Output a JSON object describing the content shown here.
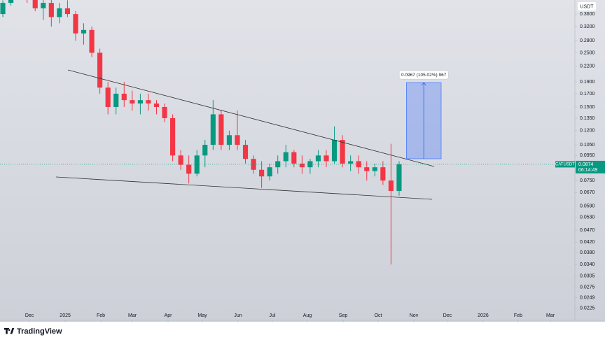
{
  "chart_data": {
    "type": "candlestick",
    "symbol": "CATUSDT",
    "currency": "USDT",
    "log_scale": true,
    "up_color": "#089981",
    "down_color": "#f23645",
    "x": [
      0,
      1,
      2,
      3,
      4,
      5,
      6,
      7,
      8,
      9,
      10,
      11,
      12,
      13,
      14,
      15,
      16,
      17,
      18,
      19,
      20,
      21,
      22,
      23,
      24,
      25,
      26,
      27,
      28,
      29,
      30,
      31,
      32,
      33,
      34,
      35,
      36,
      37,
      38,
      39,
      40,
      41,
      42,
      43,
      44,
      45,
      46,
      47,
      48,
      49
    ],
    "open": [
      0.36,
      0.4,
      0.44,
      0.45,
      0.42,
      0.38,
      0.4,
      0.35,
      0.38,
      0.36,
      0.3,
      0.31,
      0.25,
      0.18,
      0.15,
      0.17,
      0.16,
      0.155,
      0.16,
      0.155,
      0.15,
      0.135,
      0.095,
      0.087,
      0.08,
      0.095,
      0.105,
      0.14,
      0.105,
      0.115,
      0.105,
      0.092,
      0.083,
      0.078,
      0.085,
      0.09,
      0.098,
      0.088,
      0.085,
      0.09,
      0.095,
      0.09,
      0.11,
      0.088,
      0.09,
      0.085,
      0.082,
      0.085,
      0.075,
      0.068
    ],
    "high": [
      0.41,
      0.46,
      0.48,
      0.47,
      0.44,
      0.42,
      0.42,
      0.4,
      0.41,
      0.37,
      0.33,
      0.32,
      0.26,
      0.19,
      0.18,
      0.19,
      0.175,
      0.17,
      0.17,
      0.16,
      0.155,
      0.14,
      0.1,
      0.095,
      0.1,
      0.11,
      0.16,
      0.145,
      0.12,
      0.145,
      0.11,
      0.095,
      0.09,
      0.088,
      0.095,
      0.105,
      0.1,
      0.095,
      0.092,
      0.1,
      0.1,
      0.125,
      0.115,
      0.095,
      0.095,
      0.09,
      0.088,
      0.09,
      0.106,
      0.09
    ],
    "low": [
      0.35,
      0.39,
      0.42,
      0.4,
      0.37,
      0.34,
      0.32,
      0.33,
      0.35,
      0.28,
      0.27,
      0.24,
      0.17,
      0.14,
      0.14,
      0.15,
      0.145,
      0.14,
      0.145,
      0.14,
      0.13,
      0.09,
      0.083,
      0.073,
      0.078,
      0.085,
      0.1,
      0.1,
      0.1,
      0.1,
      0.088,
      0.08,
      0.07,
      0.075,
      0.08,
      0.085,
      0.085,
      0.08,
      0.08,
      0.085,
      0.085,
      0.088,
      0.085,
      0.082,
      0.08,
      0.075,
      0.078,
      0.072,
      0.034,
      0.065
    ],
    "close": [
      0.4,
      0.44,
      0.45,
      0.42,
      0.38,
      0.4,
      0.35,
      0.38,
      0.36,
      0.3,
      0.31,
      0.25,
      0.18,
      0.15,
      0.17,
      0.16,
      0.155,
      0.16,
      0.155,
      0.15,
      0.135,
      0.095,
      0.087,
      0.08,
      0.095,
      0.105,
      0.14,
      0.105,
      0.115,
      0.105,
      0.092,
      0.083,
      0.078,
      0.085,
      0.09,
      0.098,
      0.088,
      0.085,
      0.09,
      0.095,
      0.09,
      0.11,
      0.088,
      0.09,
      0.085,
      0.082,
      0.085,
      0.075,
      0.068,
      0.0874
    ],
    "xlim": [
      -0.35,
      70.65
    ],
    "xticks": [
      {
        "value": 3.29,
        "label": "Dec"
      },
      {
        "value": 7.71,
        "label": "2025"
      },
      {
        "value": 12.12,
        "label": "Feb"
      },
      {
        "value": 16.02,
        "label": "Mar"
      },
      {
        "value": 20.43,
        "label": "Apr"
      },
      {
        "value": 24.68,
        "label": "May"
      },
      {
        "value": 29.09,
        "label": "Jun"
      },
      {
        "value": 33.33,
        "label": "Jul"
      },
      {
        "value": 37.66,
        "label": "Aug"
      },
      {
        "value": 42.08,
        "label": "Sep"
      },
      {
        "value": 46.41,
        "label": "Oct"
      },
      {
        "value": 50.82,
        "label": "Nov"
      },
      {
        "value": 54.98,
        "label": "Dec"
      },
      {
        "value": 59.39,
        "label": "2026"
      },
      {
        "value": 63.72,
        "label": "Feb"
      },
      {
        "value": 67.71,
        "label": "Mar"
      }
    ],
    "ylim": [
      0.0201,
      0.411
    ],
    "yticks": [
      {
        "value": 0.36,
        "label": "0.3600"
      },
      {
        "value": 0.32,
        "label": "0.3200"
      },
      {
        "value": 0.28,
        "label": "0.2800"
      },
      {
        "value": 0.25,
        "label": "0.2500"
      },
      {
        "value": 0.22,
        "label": "0.2200"
      },
      {
        "value": 0.19,
        "label": "0.1900"
      },
      {
        "value": 0.17,
        "label": "0.1700"
      },
      {
        "value": 0.15,
        "label": "0.1500"
      },
      {
        "value": 0.135,
        "label": "0.1350"
      },
      {
        "value": 0.12,
        "label": "0.1200"
      },
      {
        "value": 0.105,
        "label": "0.1050"
      },
      {
        "value": 0.095,
        "label": "0.0950"
      },
      {
        "value": 0.075,
        "label": "0.0750"
      },
      {
        "value": 0.067,
        "label": "0.0670"
      },
      {
        "value": 0.059,
        "label": "0.0590"
      },
      {
        "value": 0.053,
        "label": "0.0530"
      },
      {
        "value": 0.047,
        "label": "0.0470"
      },
      {
        "value": 0.042,
        "label": "0.0420"
      },
      {
        "value": 0.038,
        "label": "0.0380"
      },
      {
        "value": 0.034,
        "label": "0.0340"
      },
      {
        "value": 0.0305,
        "label": "0.0305"
      },
      {
        "value": 0.0275,
        "label": "0.0275"
      },
      {
        "value": 0.0249,
        "label": "0.0249"
      },
      {
        "value": 0.0225,
        "label": "0.0225"
      }
    ],
    "last_price": 0.0874,
    "countdown": "06:14:49",
    "measure": {
      "from": 0.0921,
      "to": 0.1888,
      "x_from": 49.9,
      "x_to": 54.2,
      "label": "0.0967 (105.02%) 967"
    }
  },
  "brand": "TradingView"
}
